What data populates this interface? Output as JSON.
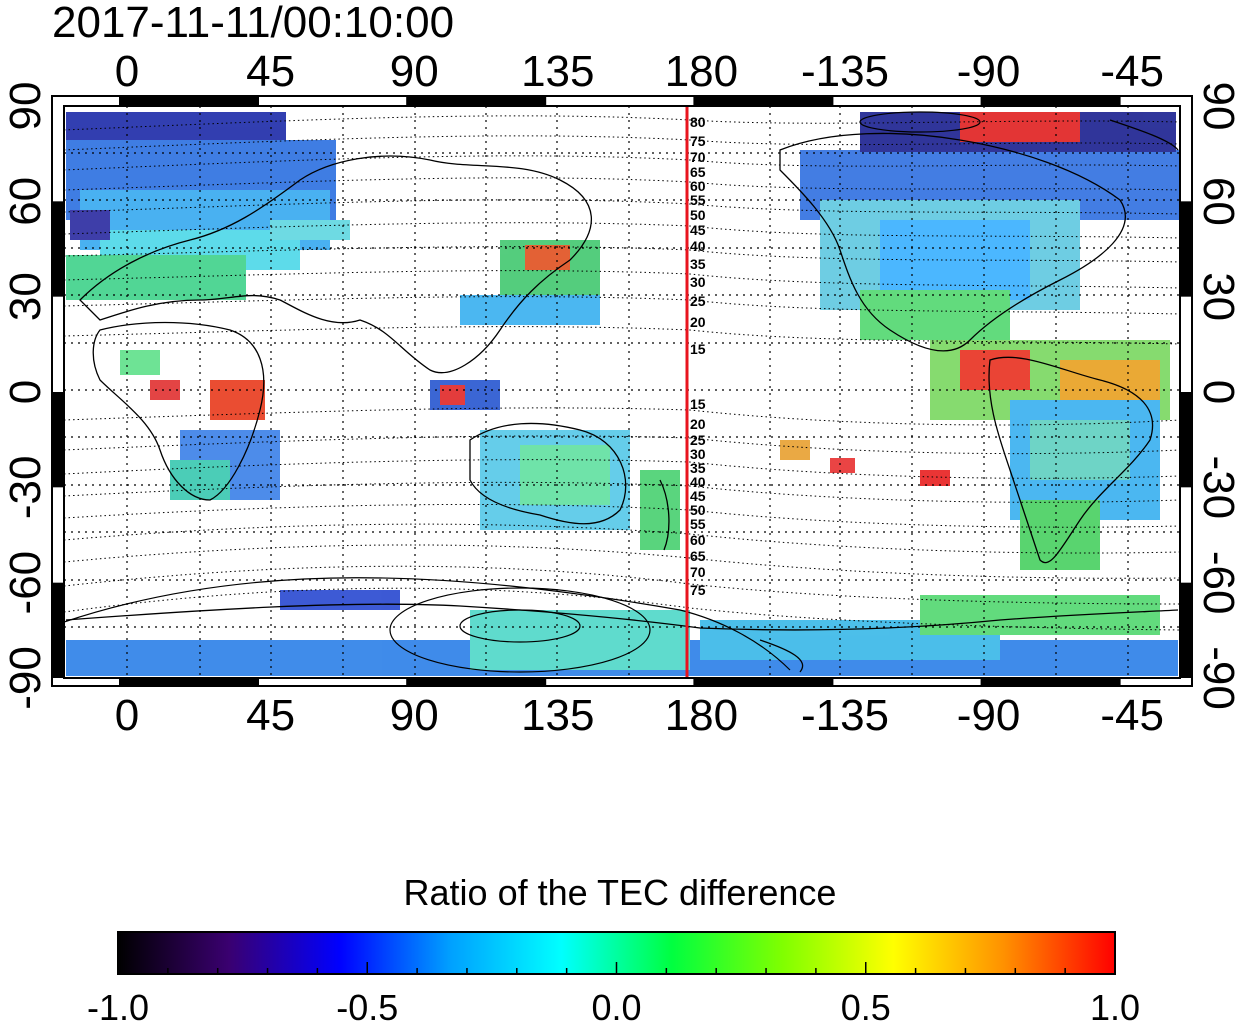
{
  "header": {
    "timestamp": "2017-11-11/00:10:00"
  },
  "map": {
    "top_lon_ticks": [
      "0",
      "45",
      "90",
      "135",
      "180",
      "-135",
      "-90",
      "-45"
    ],
    "bottom_lon_ticks": [
      "0",
      "45",
      "90",
      "135",
      "180",
      "-135",
      "-90",
      "-45"
    ],
    "left_lat_ticks": [
      "90",
      "60",
      "30",
      "0",
      "-30",
      "-60",
      "-90"
    ],
    "right_lat_ticks": [
      "90",
      "60",
      "30",
      "0",
      "-30",
      "-60",
      "-90"
    ],
    "meridian_marker_lon": 180,
    "meridian_marker_color": "#e8141e",
    "contour_labels_north": [
      "80",
      "75",
      "70",
      "65",
      "60",
      "55",
      "50",
      "45",
      "40",
      "35",
      "30",
      "25",
      "20",
      "15"
    ],
    "contour_labels_south": [
      "15",
      "20",
      "25",
      "30",
      "35",
      "40",
      "45",
      "50",
      "55",
      "60",
      "65",
      "70",
      "75"
    ]
  },
  "colorbar": {
    "title": "Ratio of the TEC difference",
    "tick_labels": [
      "-1.0",
      "-0.5",
      "0.0",
      "0.5",
      "1.0"
    ],
    "range": [
      -1.0,
      1.0
    ],
    "colors": [
      "#000000",
      "#3a0070",
      "#0000ff",
      "#00a0ff",
      "#00ffff",
      "#00ff40",
      "#80ff00",
      "#ffff00",
      "#ff9000",
      "#ff0000"
    ]
  }
}
